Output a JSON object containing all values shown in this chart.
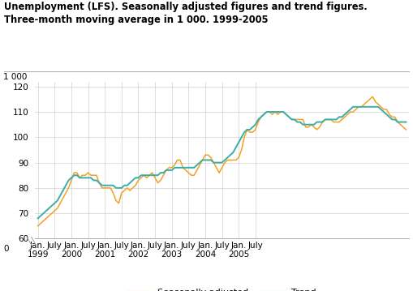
{
  "title_line1": "Unemployment (LFS). Seasonally adjusted figures and trend figures.",
  "title_line2": "Three-month moving average in 1 000. 1999-2005",
  "ylabel_top": "1 000",
  "background_color": "#ffffff",
  "grid_color": "#d0d0d0",
  "seasonally_adjusted_color": "#f5a020",
  "trend_color": "#3aada8",
  "legend_labels": [
    "Seasonally adjusted",
    "Trend"
  ],
  "yticks": [
    60,
    70,
    80,
    90,
    100,
    110,
    120
  ],
  "xtick_positions": [
    0,
    6,
    12,
    18,
    24,
    30,
    36,
    42,
    48,
    54,
    60,
    66,
    72,
    78
  ],
  "xtick_labels_line1": [
    "Jan.",
    "July",
    "Jan.",
    "July",
    "Jan.",
    "July",
    "Jan.",
    "July",
    "Jan.",
    "July",
    "Jan.",
    "July",
    "Jan.",
    "July"
  ],
  "xtick_labels_line2": [
    "1999",
    "",
    "2000",
    "",
    "2001",
    "",
    "2002",
    "",
    "2003",
    "",
    "2004",
    "",
    "2005",
    ""
  ],
  "seasonally_adjusted": [
    65,
    66,
    67,
    68,
    69,
    70,
    71,
    72,
    74,
    76,
    78,
    80,
    83,
    86,
    86,
    84,
    85,
    85,
    86,
    85,
    85,
    85,
    82,
    80,
    80,
    80,
    80,
    78,
    75,
    74,
    78,
    79,
    80,
    79,
    80,
    81,
    83,
    84,
    85,
    84,
    85,
    86,
    84,
    82,
    83,
    85,
    87,
    88,
    88,
    89,
    91,
    91,
    88,
    87,
    86,
    85,
    85,
    87,
    89,
    91,
    93,
    93,
    92,
    90,
    88,
    86,
    88,
    90,
    91,
    91,
    91,
    91,
    92,
    95,
    100,
    103,
    102,
    102,
    103,
    106,
    108,
    109,
    110,
    110,
    109,
    110,
    109,
    110,
    110,
    109,
    108,
    107,
    107,
    107,
    107,
    107,
    104,
    104,
    105,
    104,
    103,
    104,
    106,
    107,
    107,
    107,
    106,
    106,
    106,
    107,
    108,
    109,
    110,
    110,
    111,
    112,
    112,
    113,
    114,
    115,
    116,
    114,
    113,
    112,
    111,
    111,
    109,
    108,
    108,
    106,
    105,
    104,
    103
  ],
  "trend": [
    68,
    69,
    70,
    71,
    72,
    73,
    74,
    75,
    77,
    79,
    81,
    83,
    84,
    85,
    85,
    84,
    84,
    84,
    84,
    84,
    83,
    83,
    82,
    81,
    81,
    81,
    81,
    81,
    80,
    80,
    80,
    81,
    81,
    82,
    83,
    84,
    84,
    85,
    85,
    85,
    85,
    85,
    85,
    85,
    86,
    86,
    87,
    87,
    87,
    88,
    88,
    88,
    88,
    88,
    88,
    88,
    88,
    89,
    90,
    91,
    91,
    91,
    91,
    90,
    90,
    90,
    90,
    91,
    92,
    93,
    94,
    96,
    98,
    100,
    102,
    103,
    103,
    104,
    105,
    107,
    108,
    109,
    110,
    110,
    110,
    110,
    110,
    110,
    110,
    109,
    108,
    107,
    107,
    106,
    106,
    105,
    105,
    105,
    105,
    105,
    106,
    106,
    106,
    107,
    107,
    107,
    107,
    107,
    108,
    108,
    109,
    110,
    111,
    112,
    112,
    112,
    112,
    112,
    112,
    112,
    112,
    112,
    112,
    111,
    110,
    109,
    108,
    107,
    107,
    106,
    106,
    106,
    106
  ]
}
